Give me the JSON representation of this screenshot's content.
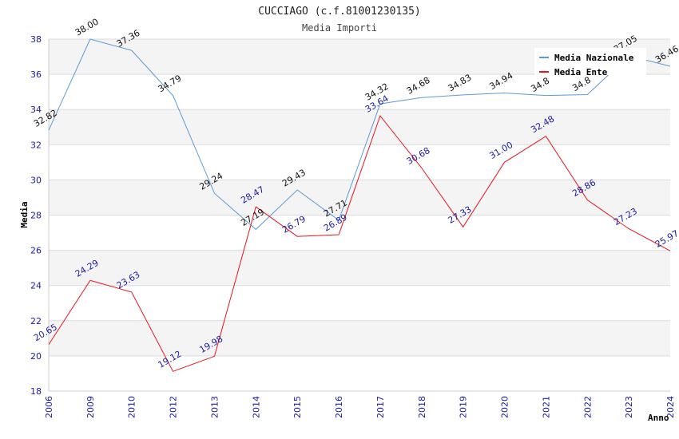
{
  "chart_data": {
    "type": "line",
    "title": "CUCCIAGO (c.f.81001230135)",
    "subtitle": "Media Importi",
    "xlabel": "Anno",
    "ylabel": "Media",
    "ylim": [
      18,
      38
    ],
    "yticks": [
      18,
      20,
      22,
      24,
      26,
      28,
      30,
      32,
      34,
      36,
      38
    ],
    "categories": [
      "2006",
      "2009",
      "2010",
      "2012",
      "2013",
      "2014",
      "2015",
      "2016",
      "2017",
      "2018",
      "2019",
      "2020",
      "2021",
      "2022",
      "2023",
      "2024"
    ],
    "legend_position": "top-right",
    "series": [
      {
        "name": "Media Nazionale",
        "color": "#5b9bd5",
        "values": [
          32.82,
          38.0,
          37.36,
          34.79,
          29.24,
          27.19,
          29.43,
          27.71,
          34.32,
          34.68,
          34.83,
          34.94,
          34.8,
          34.85,
          37.05,
          36.46
        ],
        "labels": [
          "32.82",
          "38.00",
          "37.36",
          "34.79",
          "29.24",
          "27.19",
          "29.43",
          "27.71",
          "34.32",
          "34.68",
          "34.83",
          "34.94",
          "34.8",
          "34.8",
          "37.05",
          "36.46"
        ]
      },
      {
        "name": "Media Ente",
        "color": "#e8141c",
        "values": [
          20.65,
          24.29,
          23.63,
          19.12,
          19.98,
          28.47,
          26.79,
          26.89,
          33.64,
          30.68,
          27.33,
          31.0,
          32.48,
          28.86,
          27.23,
          25.97
        ],
        "labels": [
          "20.65",
          "24.29",
          "23.63",
          "19.12",
          "19.98",
          "28.47",
          "26.79",
          "26.89",
          "33.64",
          "30.68",
          "27.33",
          "31.00",
          "32.48",
          "28.86",
          "27.23",
          "25.97"
        ]
      }
    ]
  }
}
